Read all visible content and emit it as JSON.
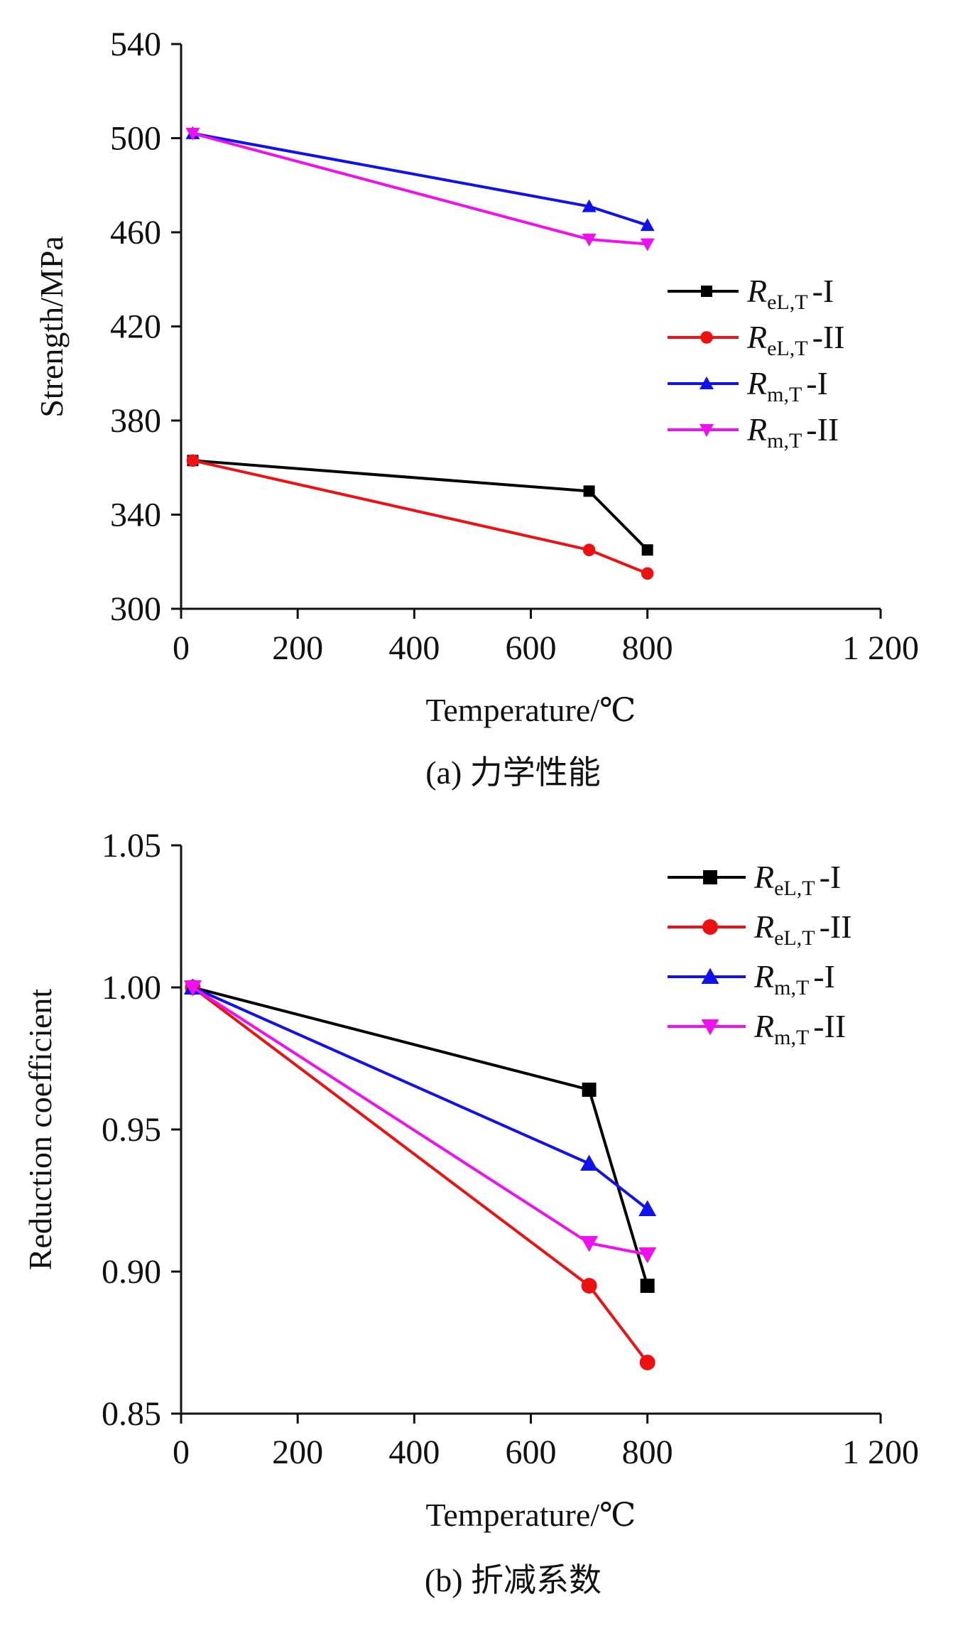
{
  "chart_data": [
    {
      "id": "a",
      "type": "line",
      "caption": "(a) 力学性能",
      "xlabel": "Temperature/℃",
      "ylabel": "Strength/MPa",
      "xlim": [
        0,
        1200
      ],
      "ylim": [
        300,
        540
      ],
      "x_ticks": [
        0,
        200,
        400,
        600,
        800,
        1200
      ],
      "x_tick_labels": [
        "0",
        "200",
        "400",
        "600",
        "800",
        "1 200"
      ],
      "y_ticks": [
        300,
        340,
        380,
        420,
        460,
        500,
        540
      ],
      "y_tick_labels": [
        "300",
        "340",
        "380",
        "420",
        "460",
        "500",
        "540"
      ],
      "legend_position": "right-middle",
      "x": [
        20,
        700,
        800
      ],
      "series": [
        {
          "name": "ReL,T-I",
          "legend": {
            "main": "R",
            "sub": "eL,T",
            "suffix": "-I"
          },
          "color": "#000000",
          "marker": "square",
          "values": [
            363,
            350,
            325
          ]
        },
        {
          "name": "ReL,T-II",
          "legend": {
            "main": "R",
            "sub": "eL,T",
            "suffix": "-II"
          },
          "color": "#ee1111",
          "marker": "circle",
          "values": [
            363,
            325,
            315
          ]
        },
        {
          "name": "Rm,T-I",
          "legend": {
            "main": "R",
            "sub": "m,T",
            "suffix": "-I"
          },
          "color": "#1111ee",
          "marker": "triangle-up",
          "values": [
            502,
            471,
            463
          ]
        },
        {
          "name": "Rm,T-II",
          "legend": {
            "main": "R",
            "sub": "m,T",
            "suffix": "-II"
          },
          "color": "#ee11ee",
          "marker": "triangle-down",
          "values": [
            502,
            457,
            455
          ]
        }
      ]
    },
    {
      "id": "b",
      "type": "line",
      "caption": "(b) 折减系数",
      "xlabel": "Temperature/℃",
      "ylabel": "Reduction coefficient",
      "xlim": [
        0,
        1200
      ],
      "ylim": [
        0.85,
        1.05
      ],
      "x_ticks": [
        0,
        200,
        400,
        600,
        800,
        1200
      ],
      "x_tick_labels": [
        "0",
        "200",
        "400",
        "600",
        "800",
        "1 200"
      ],
      "y_ticks": [
        0.85,
        0.9,
        0.95,
        1.0,
        1.05
      ],
      "y_tick_labels": [
        "0.85",
        "0.90",
        "0.95",
        "1.00",
        "1.05"
      ],
      "legend_position": "top-right",
      "x": [
        20,
        700,
        800
      ],
      "series": [
        {
          "name": "ReL,T-I",
          "legend": {
            "main": "R",
            "sub": "eL,T",
            "suffix": "-I"
          },
          "color": "#000000",
          "marker": "square",
          "values": [
            1.0,
            0.964,
            0.895
          ]
        },
        {
          "name": "ReL,T-II",
          "legend": {
            "main": "R",
            "sub": "eL,T",
            "suffix": "-II"
          },
          "color": "#ee1111",
          "marker": "circle",
          "values": [
            1.0,
            0.895,
            0.868
          ]
        },
        {
          "name": "Rm,T-I",
          "legend": {
            "main": "R",
            "sub": "m,T",
            "suffix": "-I"
          },
          "color": "#1111ee",
          "marker": "triangle-up",
          "values": [
            1.0,
            0.938,
            0.922
          ]
        },
        {
          "name": "Rm,T-II",
          "legend": {
            "main": "R",
            "sub": "m,T",
            "suffix": "-II"
          },
          "color": "#ee11ee",
          "marker": "triangle-down",
          "values": [
            1.0,
            0.91,
            0.906
          ]
        }
      ]
    }
  ]
}
